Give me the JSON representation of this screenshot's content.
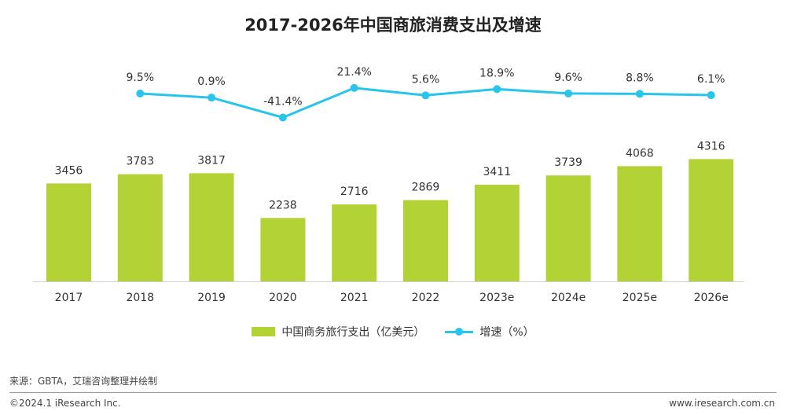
{
  "title": "2017-2026年中国商旅消费支出及增速",
  "legend": {
    "bar_label": "中国商务旅行支出（亿美元）",
    "line_label": "增速（%）"
  },
  "chart_data": {
    "type": "bar",
    "categories": [
      "2017",
      "2018",
      "2019",
      "2020",
      "2021",
      "2022",
      "2023e",
      "2024e",
      "2025e",
      "2026e"
    ],
    "series": [
      {
        "name": "中国商务旅行支出（亿美元）",
        "type": "bar",
        "color": "#b2d235",
        "values": [
          3456,
          3783,
          3817,
          2238,
          2716,
          2869,
          3411,
          3739,
          4068,
          4316
        ],
        "labels": [
          "3456",
          "3783",
          "3817",
          "2238",
          "2716",
          "2869",
          "3411",
          "3739",
          "4068",
          "4316"
        ]
      },
      {
        "name": "增速（%）",
        "type": "line",
        "color": "#29c4ea",
        "values": [
          null,
          9.5,
          0.9,
          -41.4,
          21.4,
          5.6,
          18.9,
          9.6,
          8.8,
          6.1
        ],
        "labels": [
          "",
          "9.5%",
          "0.9%",
          "-41.4%",
          "21.4%",
          "5.6%",
          "18.9%",
          "9.6%",
          "8.8%",
          "6.1%"
        ]
      }
    ]
  },
  "source": "来源：GBTA，艾瑞咨询整理并绘制",
  "copyright": "©2024.1 iResearch Inc.",
  "website": "www.iresearch.com.cn"
}
